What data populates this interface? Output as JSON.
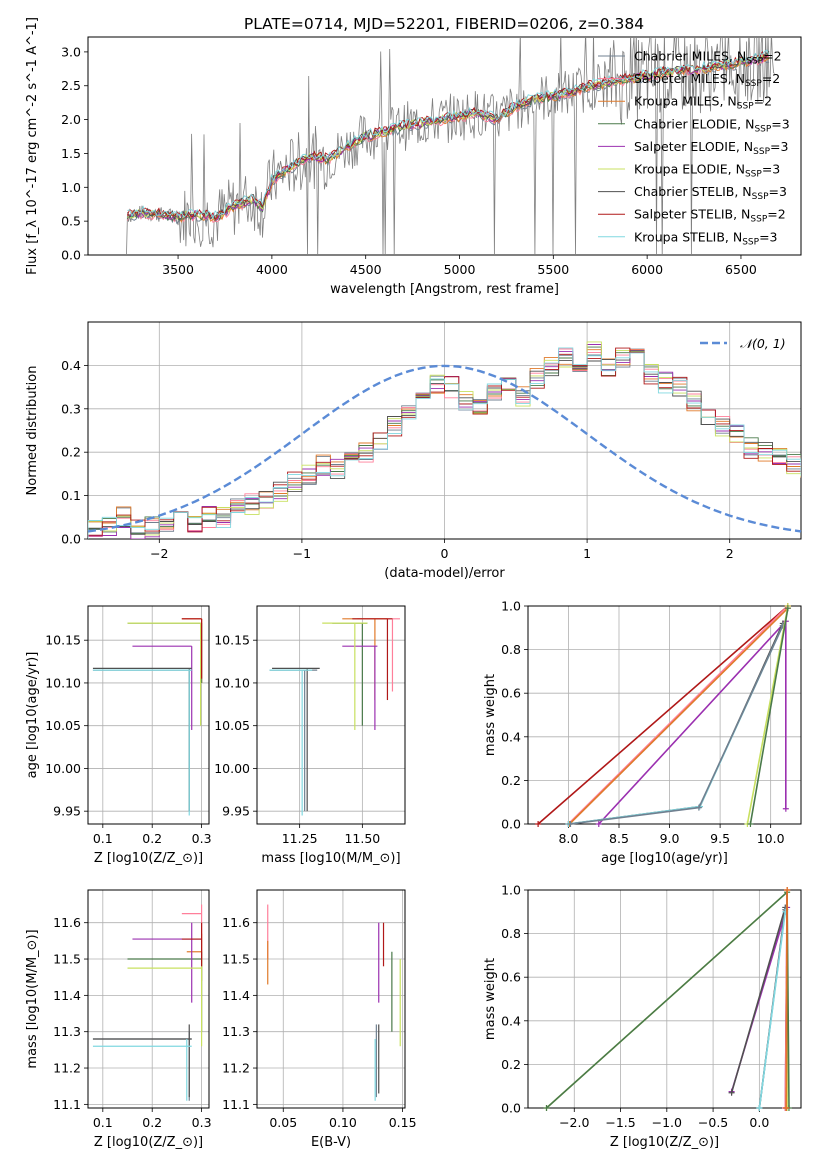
{
  "figure_title": "PLATE=0714, MJD=52201, FIBERID=0206, z=0.384",
  "colors": {
    "Chabrier MILES": "#708090",
    "Salpeter MILES": "#ff7f9a",
    "Kroupa MILES": "#e07a2a",
    "Chabrier ELODIE": "#4a7a4a",
    "Salpeter ELODIE": "#9b30b0",
    "Kroupa ELODIE": "#c8e060",
    "Chabrier STELIB": "#505050",
    "Salpeter STELIB": "#b01818",
    "Kroupa STELIB": "#80d8e0",
    "data": "#808080",
    "gaussian": "#5b8bd6"
  },
  "chart_data": [
    {
      "id": "spectrum",
      "type": "line",
      "title": "PLATE=0714, MJD=52201, FIBERID=0206, z=0.384",
      "xlabel": "wavelength [Angstrom, rest frame]",
      "ylabel": "Flux [f_λ 10^-17 erg cm^-2 s^-1 A^-1]",
      "xlim": [
        3020,
        6820
      ],
      "ylim": [
        0,
        3.22
      ],
      "xticks": [
        3500,
        4000,
        4500,
        5000,
        5500,
        6000,
        6500
      ],
      "yticks": [
        0.0,
        0.5,
        1.0,
        1.5,
        2.0,
        2.5,
        3.0
      ],
      "legend_position": "top-right",
      "series": [
        {
          "name": "Chabrier MILES, N_SSP=2"
        },
        {
          "name": "Salpeter MILES, N_SSP=2"
        },
        {
          "name": "Kroupa MILES, N_SSP=2"
        },
        {
          "name": "Chabrier ELODIE, N_SSP=3"
        },
        {
          "name": "Salpeter ELODIE, N_SSP=3"
        },
        {
          "name": "Kroupa ELODIE, N_SSP=3"
        },
        {
          "name": "Chabrier STELIB, N_SSP=3"
        },
        {
          "name": "Salpeter STELIB, N_SSP=2"
        },
        {
          "name": "Kroupa STELIB, N_SSP=3"
        }
      ],
      "model_points": [
        [
          3230,
          0.58
        ],
        [
          3300,
          0.62
        ],
        [
          3400,
          0.6
        ],
        [
          3500,
          0.56
        ],
        [
          3600,
          0.6
        ],
        [
          3700,
          0.55
        ],
        [
          3800,
          0.72
        ],
        [
          3900,
          0.82
        ],
        [
          3950,
          0.7
        ],
        [
          4000,
          1.1
        ],
        [
          4100,
          1.3
        ],
        [
          4200,
          1.45
        ],
        [
          4300,
          1.42
        ],
        [
          4400,
          1.6
        ],
        [
          4500,
          1.75
        ],
        [
          4600,
          1.82
        ],
        [
          4700,
          1.9
        ],
        [
          4800,
          1.95
        ],
        [
          4900,
          2.0
        ],
        [
          5000,
          2.05
        ],
        [
          5100,
          2.1
        ],
        [
          5200,
          2.0
        ],
        [
          5300,
          2.2
        ],
        [
          5400,
          2.3
        ],
        [
          5500,
          2.35
        ],
        [
          5600,
          2.4
        ],
        [
          5700,
          2.5
        ],
        [
          5800,
          2.55
        ],
        [
          5900,
          2.6
        ],
        [
          6000,
          2.65
        ],
        [
          6100,
          2.7
        ],
        [
          6200,
          2.72
        ],
        [
          6300,
          2.75
        ],
        [
          6400,
          2.8
        ],
        [
          6500,
          2.85
        ],
        [
          6600,
          2.9
        ],
        [
          6650,
          2.95
        ]
      ]
    },
    {
      "id": "residuals",
      "type": "line",
      "xlabel": "(data-model)/error",
      "ylabel": "Normed distribution",
      "xlim": [
        -2.5,
        2.5
      ],
      "ylim": [
        0,
        0.5
      ],
      "xticks": [
        -2,
        -1,
        0,
        1,
        2
      ],
      "yticks": [
        0.0,
        0.1,
        0.2,
        0.3,
        0.4
      ],
      "legend_position": "top-right",
      "gaussian_label": "𝒩(0, 1)",
      "bin_width": 0.1,
      "bin_start": -2.5,
      "hist_values": [
        0.03,
        0.03,
        0.05,
        0.02,
        0.03,
        0.03,
        0.04,
        0.04,
        0.05,
        0.05,
        0.07,
        0.08,
        0.09,
        0.11,
        0.13,
        0.15,
        0.17,
        0.16,
        0.18,
        0.2,
        0.22,
        0.26,
        0.29,
        0.33,
        0.36,
        0.35,
        0.32,
        0.31,
        0.34,
        0.36,
        0.33,
        0.37,
        0.4,
        0.42,
        0.41,
        0.43,
        0.4,
        0.42,
        0.44,
        0.38,
        0.36,
        0.35,
        0.32,
        0.28,
        0.26,
        0.24,
        0.21,
        0.2,
        0.19,
        0.17,
        0.16,
        0.15,
        0.14,
        0.13,
        0.12,
        0.1,
        0.09,
        0.08,
        0.07,
        0.06,
        0.06,
        0.05,
        0.05,
        0.06,
        0.06,
        0.05,
        0.05,
        0.06,
        0.05,
        0.05
      ]
    },
    {
      "id": "age-vs-Z",
      "type": "scatter",
      "xlabel": "Z [log10(Z/Z_⊙)]",
      "ylabel": "age [log10(age/yr)]",
      "xlim": [
        0.07,
        0.315
      ],
      "ylim": [
        9.935,
        10.19
      ],
      "xticks": [
        0.1,
        0.2,
        0.3
      ],
      "yticks": [
        9.95,
        10.0,
        10.05,
        10.1,
        10.15
      ],
      "points": [
        {
          "series": "Chabrier MILES",
          "x": 0.275,
          "y": 10.115,
          "xlo": 0.08,
          "xhi": 0.28,
          "ylo": 9.95,
          "yhi": 10.115
        },
        {
          "series": "Salpeter MILES",
          "x": 0.3,
          "y": 10.175,
          "xlo": 0.26,
          "xhi": 0.3,
          "ylo": 10.1,
          "yhi": 10.175
        },
        {
          "series": "Kroupa MILES",
          "x": 0.3,
          "y": 10.175,
          "xlo": 0.26,
          "xhi": 0.3,
          "ylo": 10.1,
          "yhi": 10.175
        },
        {
          "series": "Chabrier ELODIE",
          "x": 0.3,
          "y": 10.17,
          "xlo": 0.15,
          "xhi": 0.3,
          "ylo": 10.1,
          "yhi": 10.17
        },
        {
          "series": "Salpeter ELODIE",
          "x": 0.28,
          "y": 10.143,
          "xlo": 0.16,
          "xhi": 0.28,
          "ylo": 10.045,
          "yhi": 10.143
        },
        {
          "series": "Kroupa ELODIE",
          "x": 0.298,
          "y": 10.17,
          "xlo": 0.15,
          "xhi": 0.3,
          "ylo": 10.05,
          "yhi": 10.17
        },
        {
          "series": "Chabrier STELIB",
          "x": 0.275,
          "y": 10.117,
          "xlo": 0.08,
          "xhi": 0.28,
          "ylo": 9.95,
          "yhi": 10.117
        },
        {
          "series": "Salpeter STELIB",
          "x": 0.3,
          "y": 10.175,
          "xlo": 0.26,
          "xhi": 0.3,
          "ylo": 10.105,
          "yhi": 10.175
        },
        {
          "series": "Kroupa STELIB",
          "x": 0.275,
          "y": 10.115,
          "xlo": 0.08,
          "xhi": 0.28,
          "ylo": 9.945,
          "yhi": 10.115
        }
      ]
    },
    {
      "id": "age-vs-mass",
      "type": "scatter",
      "xlabel": "mass [log10(M/M_⊙)]",
      "ylabel": "",
      "xlim": [
        11.08,
        11.67
      ],
      "ylim": [
        9.935,
        10.19
      ],
      "xticks": [
        11.25,
        11.5
      ],
      "yticks": [
        9.95,
        10.0,
        10.05,
        10.1,
        10.15
      ],
      "points": [
        {
          "series": "Chabrier MILES",
          "x": 11.27,
          "y": 10.115,
          "xlo": 11.13,
          "xhi": 11.32,
          "ylo": 9.95,
          "yhi": 10.115
        },
        {
          "series": "Salpeter MILES",
          "x": 11.62,
          "y": 10.175,
          "xlo": 11.48,
          "xhi": 11.65,
          "ylo": 10.09,
          "yhi": 10.175
        },
        {
          "series": "Kroupa MILES",
          "x": 11.55,
          "y": 10.175,
          "xlo": 11.42,
          "xhi": 11.6,
          "ylo": 10.08,
          "yhi": 10.175
        },
        {
          "series": "Chabrier ELODIE",
          "x": 11.5,
          "y": 10.17,
          "xlo": 11.38,
          "xhi": 11.52,
          "ylo": 10.05,
          "yhi": 10.17
        },
        {
          "series": "Salpeter ELODIE",
          "x": 11.55,
          "y": 10.143,
          "xlo": 11.42,
          "xhi": 11.56,
          "ylo": 10.045,
          "yhi": 10.143
        },
        {
          "series": "Kroupa ELODIE",
          "x": 11.47,
          "y": 10.17,
          "xlo": 11.34,
          "xhi": 11.52,
          "ylo": 10.045,
          "yhi": 10.17
        },
        {
          "series": "Chabrier STELIB",
          "x": 11.28,
          "y": 10.117,
          "xlo": 11.14,
          "xhi": 11.33,
          "ylo": 9.95,
          "yhi": 10.117
        },
        {
          "series": "Salpeter STELIB",
          "x": 11.6,
          "y": 10.175,
          "xlo": 11.46,
          "xhi": 11.62,
          "ylo": 10.08,
          "yhi": 10.175
        },
        {
          "series": "Kroupa STELIB",
          "x": 11.26,
          "y": 10.115,
          "xlo": 11.13,
          "xhi": 11.3,
          "ylo": 9.945,
          "yhi": 10.115
        }
      ]
    },
    {
      "id": "mass-weight-vs-age",
      "type": "line",
      "xlabel": "age [log10(age/yr)]",
      "ylabel": "mass weight",
      "xlim": [
        7.6,
        10.3
      ],
      "ylim": [
        0,
        1.0
      ],
      "xticks": [
        8.0,
        8.5,
        9.0,
        9.5,
        10.0
      ],
      "yticks": [
        0.0,
        0.2,
        0.4,
        0.6,
        0.8,
        1.0
      ],
      "series": [
        {
          "series": "Salpeter STELIB",
          "points": [
            [
              7.7,
              0.0
            ],
            [
              10.17,
              1.0
            ]
          ]
        },
        {
          "series": "Salpeter MILES",
          "points": [
            [
              8.0,
              0.0
            ],
            [
              10.17,
              1.0
            ]
          ]
        },
        {
          "series": "Kroupa MILES",
          "points": [
            [
              8.01,
              0.0
            ],
            [
              10.17,
              0.99
            ]
          ]
        },
        {
          "series": "Salpeter ELODIE",
          "points": [
            [
              8.3,
              0.0
            ],
            [
              10.15,
              0.93
            ],
            [
              10.15,
              0.07
            ]
          ]
        },
        {
          "series": "Chabrier STELIB",
          "points": [
            [
              8.0,
              0.0
            ],
            [
              9.3,
              0.08
            ],
            [
              10.12,
              0.92
            ]
          ]
        },
        {
          "series": "Kroupa STELIB",
          "points": [
            [
              8.0,
              0.0
            ],
            [
              9.3,
              0.08
            ],
            [
              10.12,
              0.91
            ]
          ]
        },
        {
          "series": "Chabrier MILES",
          "points": [
            [
              8.02,
              0.0
            ],
            [
              9.29,
              0.075
            ],
            [
              10.12,
              0.91
            ]
          ]
        },
        {
          "series": "Kroupa ELODIE",
          "points": [
            [
              9.77,
              0.0
            ],
            [
              10.17,
              1.0
            ]
          ]
        },
        {
          "series": "Chabrier ELODIE",
          "points": [
            [
              9.8,
              0.0
            ],
            [
              10.17,
              0.99
            ]
          ]
        }
      ]
    },
    {
      "id": "mass-vs-Z",
      "type": "scatter",
      "xlabel": "Z [log10(Z/Z_⊙)]",
      "ylabel": "mass [log10(M/M_⊙)]",
      "xlim": [
        0.07,
        0.315
      ],
      "ylim": [
        11.09,
        11.69
      ],
      "xticks": [
        0.1,
        0.2,
        0.3
      ],
      "yticks": [
        11.1,
        11.2,
        11.3,
        11.4,
        11.5,
        11.6
      ],
      "points": [
        {
          "series": "Chabrier MILES",
          "x": 0.275,
          "y": 11.28,
          "xlo": 0.08,
          "xhi": 0.28,
          "ylo": 11.11,
          "yhi": 11.3
        },
        {
          "series": "Salpeter MILES",
          "x": 0.3,
          "y": 11.625,
          "xlo": 0.26,
          "xhi": 0.3,
          "ylo": 11.5,
          "yhi": 11.65
        },
        {
          "series": "Kroupa MILES",
          "x": 0.3,
          "y": 11.52,
          "xlo": 0.27,
          "xhi": 0.3,
          "ylo": 11.44,
          "yhi": 11.57
        },
        {
          "series": "Chabrier ELODIE",
          "x": 0.3,
          "y": 11.5,
          "xlo": 0.15,
          "xhi": 0.3,
          "ylo": 11.3,
          "yhi": 11.52
        },
        {
          "series": "Salpeter ELODIE",
          "x": 0.28,
          "y": 11.555,
          "xlo": 0.16,
          "xhi": 0.3,
          "ylo": 11.38,
          "yhi": 11.6
        },
        {
          "series": "Kroupa ELODIE",
          "x": 0.3,
          "y": 11.475,
          "xlo": 0.15,
          "xhi": 0.3,
          "ylo": 11.26,
          "yhi": 11.5
        },
        {
          "series": "Chabrier STELIB",
          "x": 0.275,
          "y": 11.28,
          "xlo": 0.08,
          "xhi": 0.28,
          "ylo": 11.12,
          "yhi": 11.32
        },
        {
          "series": "Salpeter STELIB",
          "x": 0.3,
          "y": 11.555,
          "xlo": 0.26,
          "xhi": 0.3,
          "ylo": 11.48,
          "yhi": 11.6
        },
        {
          "series": "Kroupa STELIB",
          "x": 0.27,
          "y": 11.26,
          "xlo": 0.08,
          "xhi": 0.28,
          "ylo": 11.11,
          "yhi": 11.28
        }
      ]
    },
    {
      "id": "mass-vs-ebv",
      "type": "scatter",
      "xlabel": "E(B-V)",
      "ylabel": "",
      "xlim": [
        0.028,
        0.152
      ],
      "ylim": [
        11.09,
        11.69
      ],
      "xticks": [
        0.05,
        0.1,
        0.15
      ],
      "yticks": [
        11.1,
        11.2,
        11.3,
        11.4,
        11.5,
        11.6
      ],
      "points": [
        {
          "series": "Chabrier MILES",
          "x": 0.128,
          "ylo": 11.12,
          "yhi": 11.32
        },
        {
          "series": "Salpeter MILES",
          "x": 0.037,
          "ylo": 11.5,
          "yhi": 11.65
        },
        {
          "series": "Kroupa MILES",
          "x": 0.037,
          "ylo": 11.43,
          "yhi": 11.55
        },
        {
          "series": "Chabrier ELODIE",
          "x": 0.141,
          "ylo": 11.3,
          "yhi": 11.52
        },
        {
          "series": "Salpeter ELODIE",
          "x": 0.13,
          "ylo": 11.38,
          "yhi": 11.6
        },
        {
          "series": "Kroupa ELODIE",
          "x": 0.148,
          "ylo": 11.26,
          "yhi": 11.5
        },
        {
          "series": "Chabrier STELIB",
          "x": 0.13,
          "ylo": 11.13,
          "yhi": 11.32
        },
        {
          "series": "Salpeter STELIB",
          "x": 0.134,
          "ylo": 11.48,
          "yhi": 11.6
        },
        {
          "series": "Kroupa STELIB",
          "x": 0.127,
          "ylo": 11.11,
          "yhi": 11.28
        }
      ]
    },
    {
      "id": "mass-weight-vs-Z",
      "type": "line",
      "xlabel": "Z [log10(Z/Z_⊙)]",
      "ylabel": "mass weight",
      "xlim": [
        -2.5,
        0.45
      ],
      "ylim": [
        0,
        1.0
      ],
      "xticks": [
        -2.0,
        -1.5,
        -1.0,
        -0.5,
        0.0
      ],
      "yticks": [
        0.0,
        0.2,
        0.4,
        0.6,
        0.8,
        1.0
      ],
      "series": [
        {
          "series": "Kroupa ELODIE",
          "points": [
            [
              -2.3,
              0.0
            ],
            [
              0.3,
              0.99
            ],
            [
              0.3,
              0.0
            ]
          ]
        },
        {
          "series": "Chabrier ELODIE",
          "points": [
            [
              -2.3,
              0.0
            ],
            [
              0.3,
              0.99
            ],
            [
              0.32,
              0.0
            ]
          ]
        },
        {
          "series": "Salpeter ELODIE",
          "points": [
            [
              -0.3,
              0.075
            ],
            [
              0.3,
              0.92
            ],
            [
              0.28,
              0.0
            ]
          ]
        },
        {
          "series": "Chabrier STELIB",
          "points": [
            [
              0.0,
              0.0
            ],
            [
              0.28,
              0.92
            ],
            [
              -0.3,
              0.07
            ]
          ]
        },
        {
          "series": "Chabrier MILES",
          "points": [
            [
              0.0,
              0.0
            ],
            [
              0.28,
              0.91
            ]
          ]
        },
        {
          "series": "Kroupa STELIB",
          "points": [
            [
              0.0,
              0.0
            ],
            [
              0.28,
              0.9
            ]
          ]
        },
        {
          "series": "Salpeter MILES",
          "points": [
            [
              0.28,
              0.0
            ],
            [
              0.3,
              1.0
            ]
          ]
        },
        {
          "series": "Salpeter STELIB",
          "points": [
            [
              0.29,
              0.0
            ],
            [
              0.3,
              1.0
            ]
          ]
        },
        {
          "series": "Kroupa MILES",
          "points": [
            [
              0.29,
              0.0
            ],
            [
              0.3,
              1.0
            ]
          ]
        }
      ]
    }
  ]
}
